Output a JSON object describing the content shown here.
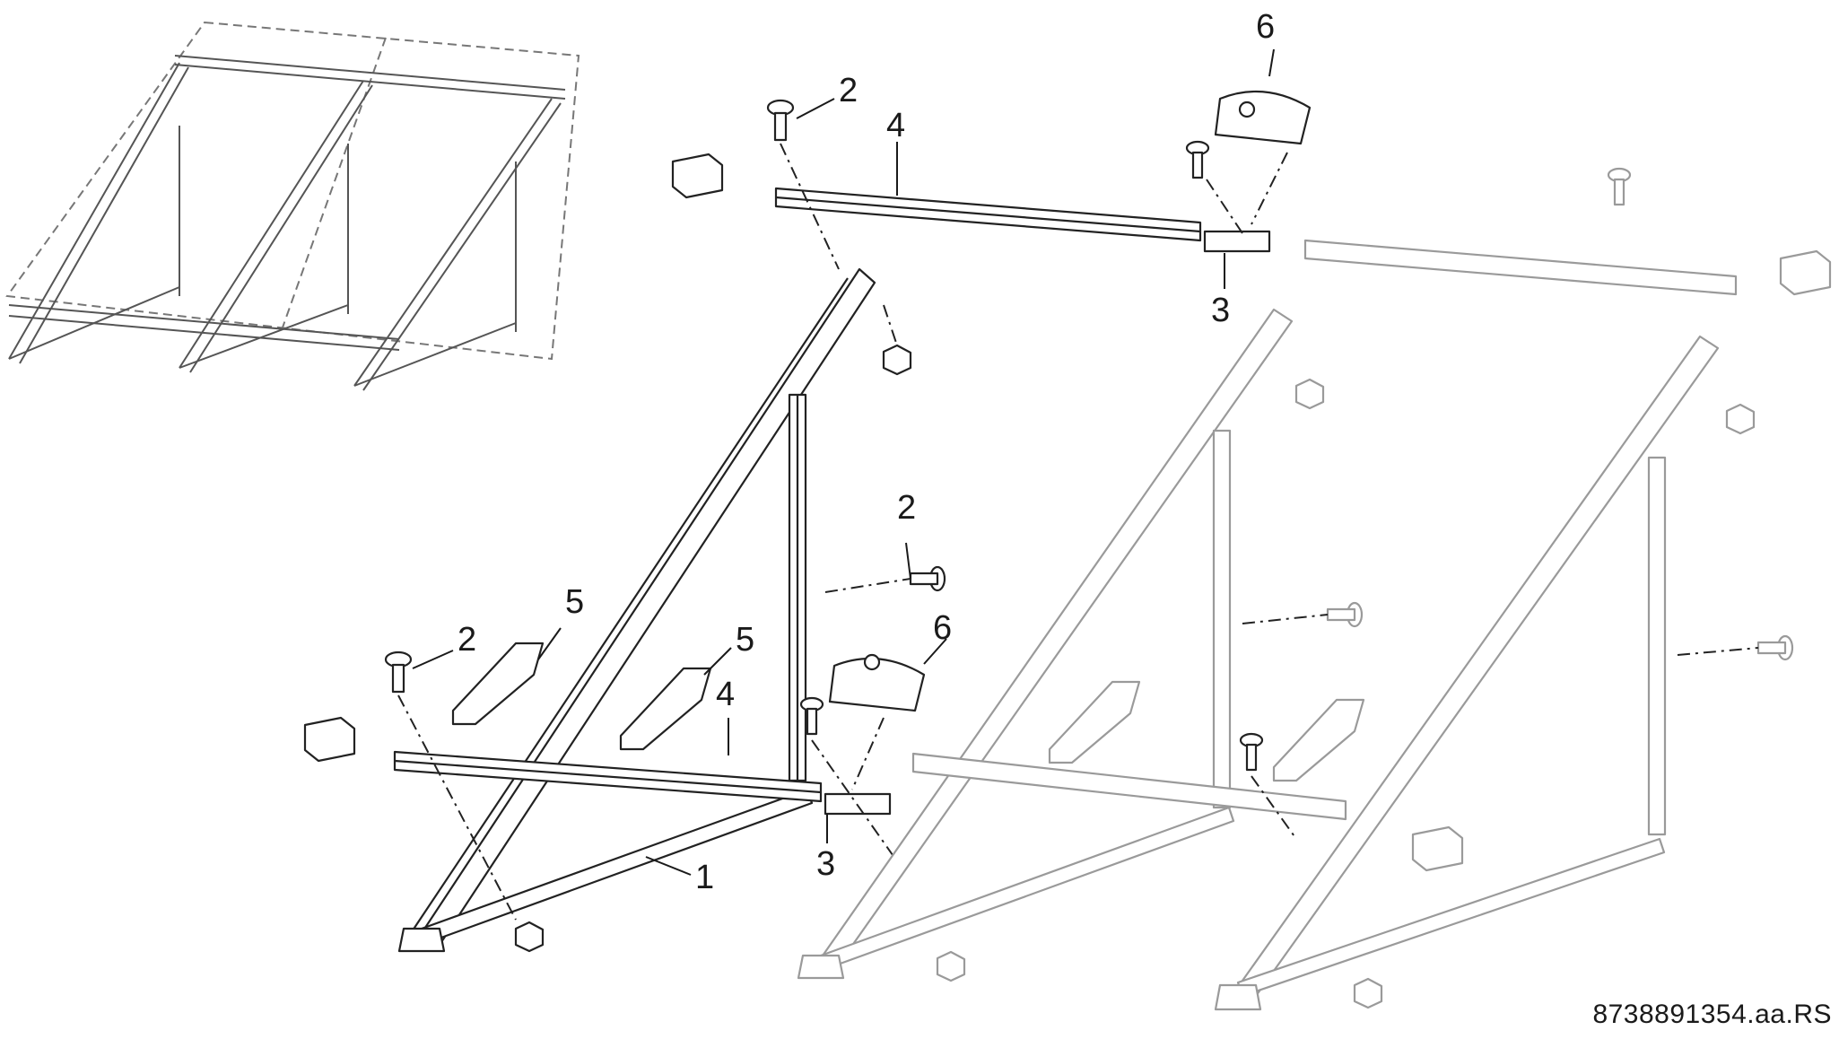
{
  "figure": {
    "document_id": "8738891354.aa.RS",
    "callouts": [
      "1",
      "2",
      "3",
      "4",
      "5",
      "6"
    ]
  },
  "parts": [
    {
      "id": "1",
      "name": "frame-triangle"
    },
    {
      "id": "2",
      "name": "screw"
    },
    {
      "id": "3",
      "name": "rail-connector"
    },
    {
      "id": "4",
      "name": "mounting-rail"
    },
    {
      "id": "5",
      "name": "collector-retainer"
    },
    {
      "id": "6",
      "name": "rail-end-clamp"
    }
  ]
}
